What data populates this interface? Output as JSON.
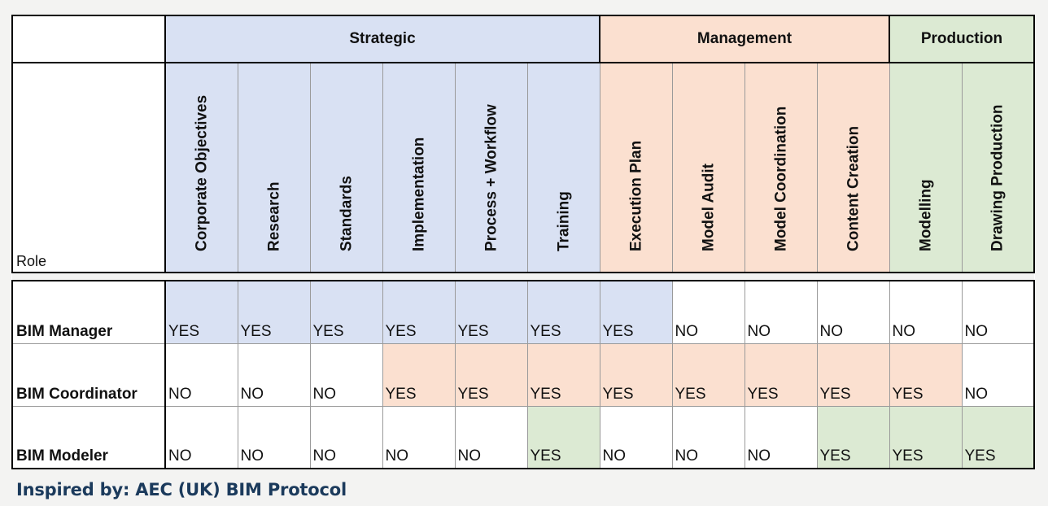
{
  "groups": [
    {
      "label": "Strategic",
      "span": 6,
      "color": "strategic"
    },
    {
      "label": "Management",
      "span": 4,
      "color": "management"
    },
    {
      "label": "Production",
      "span": 2,
      "color": "production"
    }
  ],
  "role_header": "Role",
  "columns": [
    {
      "label": "Corporate  Objectives",
      "group": "strategic"
    },
    {
      "label": "Research",
      "group": "strategic"
    },
    {
      "label": "Standards",
      "group": "strategic"
    },
    {
      "label": "Implementation",
      "group": "strategic"
    },
    {
      "label": "Process + Workflow",
      "group": "strategic"
    },
    {
      "label": "Training",
      "group": "strategic"
    },
    {
      "label": "Execution Plan",
      "group": "management"
    },
    {
      "label": "Model Audit",
      "group": "management"
    },
    {
      "label": "Model Coordination",
      "group": "management"
    },
    {
      "label": "Content Creation",
      "group": "management"
    },
    {
      "label": "Modelling",
      "group": "production"
    },
    {
      "label": "Drawing Production",
      "group": "production"
    }
  ],
  "rows": [
    {
      "role": "BIM Manager",
      "values": [
        "YES",
        "YES",
        "YES",
        "YES",
        "YES",
        "YES",
        "YES",
        "NO",
        "NO",
        "NO",
        "NO",
        "NO"
      ],
      "fills": [
        "strategic",
        "strategic",
        "strategic",
        "strategic",
        "strategic",
        "strategic",
        "strategic",
        "white",
        "white",
        "white",
        "white",
        "white"
      ]
    },
    {
      "role": "BIM Coordinator",
      "values": [
        "NO",
        "NO",
        "NO",
        "YES",
        "YES",
        "YES",
        "YES",
        "YES",
        "YES",
        "YES",
        "YES",
        "NO"
      ],
      "fills": [
        "white",
        "white",
        "white",
        "management",
        "management",
        "management",
        "management",
        "management",
        "management",
        "management",
        "management",
        "white"
      ]
    },
    {
      "role": "BIM Modeler",
      "values": [
        "NO",
        "NO",
        "NO",
        "NO",
        "NO",
        "YES",
        "NO",
        "NO",
        "NO",
        "YES",
        "YES",
        "YES"
      ],
      "fills": [
        "white",
        "white",
        "white",
        "white",
        "white",
        "production",
        "white",
        "white",
        "white",
        "production",
        "production",
        "production"
      ]
    }
  ],
  "credit": "Inspired by: AEC (UK) BIM Protocol",
  "colors": {
    "strategic": "#d9e1f3",
    "management": "#fbe0d0",
    "production": "#dcead3",
    "credit_text": "#1b3a5c"
  }
}
